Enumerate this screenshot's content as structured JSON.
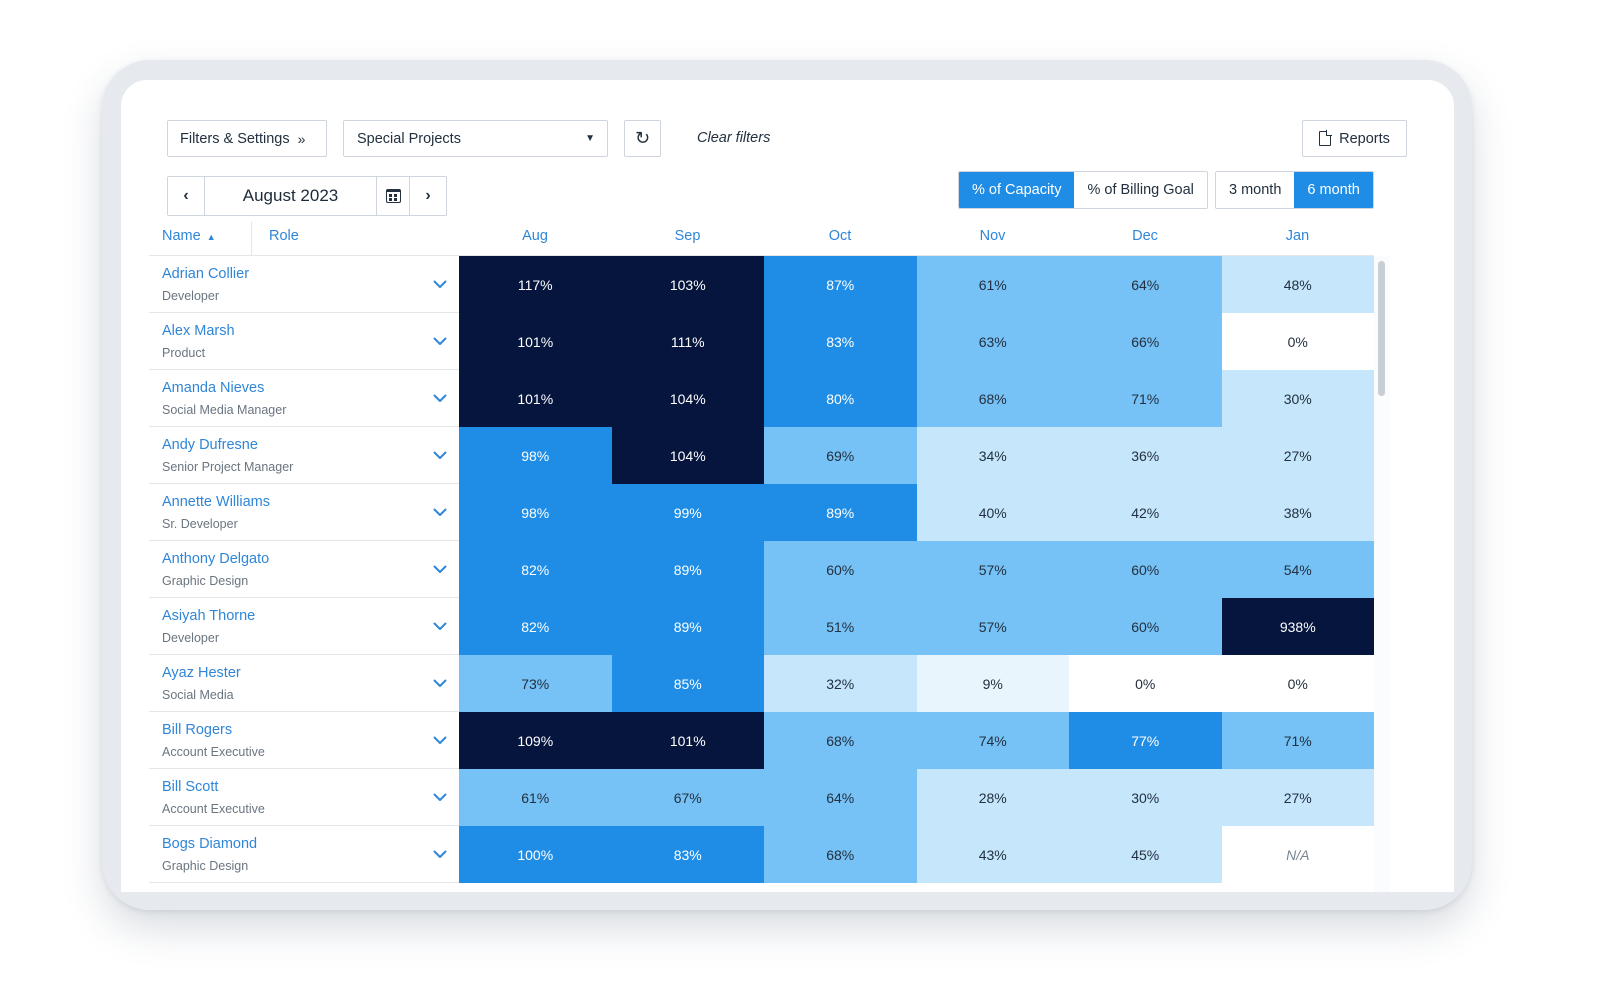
{
  "toolbar": {
    "filters_label": "Filters & Settings",
    "filters_chevron": "»",
    "project_value": "Special Projects",
    "clear_filters": "Clear filters",
    "reports_label": "Reports"
  },
  "date_nav": {
    "month": "August 2023",
    "prev": "‹",
    "next": "›"
  },
  "metric_toggle": [
    {
      "label": "% of Capacity",
      "active": true
    },
    {
      "label": "% of Billing Goal",
      "active": false
    }
  ],
  "range_toggle": [
    {
      "label": "3 month",
      "active": false
    },
    {
      "label": "6 month",
      "active": true
    }
  ],
  "table": {
    "name_header": "Name",
    "sort_indicator": "▲",
    "role_header": "Role",
    "months": [
      "Aug",
      "Sep",
      "Oct",
      "Nov",
      "Dec",
      "Jan"
    ],
    "rows": [
      {
        "name": "Adrian Collier",
        "role": "Developer",
        "values": [
          "117%",
          "103%",
          "87%",
          "61%",
          "64%",
          "48%"
        ]
      },
      {
        "name": "Alex Marsh",
        "role": "Product",
        "values": [
          "101%",
          "111%",
          "83%",
          "63%",
          "66%",
          "0%"
        ]
      },
      {
        "name": "Amanda Nieves",
        "role": "Social Media Manager",
        "values": [
          "101%",
          "104%",
          "80%",
          "68%",
          "71%",
          "30%"
        ]
      },
      {
        "name": "Andy Dufresne",
        "role": "Senior Project Manager",
        "values": [
          "98%",
          "104%",
          "69%",
          "34%",
          "36%",
          "27%"
        ]
      },
      {
        "name": "Annette Williams",
        "role": "Sr. Developer",
        "values": [
          "98%",
          "99%",
          "89%",
          "40%",
          "42%",
          "38%"
        ]
      },
      {
        "name": "Anthony Delgato",
        "role": "Graphic Design",
        "values": [
          "82%",
          "89%",
          "60%",
          "57%",
          "60%",
          "54%"
        ]
      },
      {
        "name": "Asiyah Thorne",
        "role": "Developer",
        "values": [
          "82%",
          "89%",
          "51%",
          "57%",
          "60%",
          "938%"
        ]
      },
      {
        "name": "Ayaz Hester",
        "role": "Social Media",
        "values": [
          "73%",
          "85%",
          "32%",
          "9%",
          "0%",
          "0%"
        ]
      },
      {
        "name": "Bill Rogers",
        "role": "Account Executive",
        "values": [
          "109%",
          "101%",
          "68%",
          "74%",
          "77%",
          "71%"
        ]
      },
      {
        "name": "Bill Scott",
        "role": "Account Executive",
        "values": [
          "61%",
          "67%",
          "64%",
          "28%",
          "30%",
          "27%"
        ]
      },
      {
        "name": "Bogs Diamond",
        "role": "Graphic Design",
        "values": [
          "100%",
          "83%",
          "68%",
          "43%",
          "45%",
          "N/A"
        ]
      }
    ],
    "cell_colors": [
      [
        "#06153d",
        "#06153d",
        "#1f8de6",
        "#76c1f5",
        "#76c1f5",
        "#c5e6fb"
      ],
      [
        "#06153d",
        "#06153d",
        "#1f8de6",
        "#76c1f5",
        "#76c1f5",
        "#ffffff"
      ],
      [
        "#06153d",
        "#06153d",
        "#1f8de6",
        "#76c1f5",
        "#76c1f5",
        "#c5e6fb"
      ],
      [
        "#1f8de6",
        "#06153d",
        "#76c1f5",
        "#c5e6fb",
        "#c5e6fb",
        "#c5e6fb"
      ],
      [
        "#1f8de6",
        "#1f8de6",
        "#1f8de6",
        "#c5e6fb",
        "#c5e6fb",
        "#c5e6fb"
      ],
      [
        "#1f8de6",
        "#1f8de6",
        "#76c1f5",
        "#76c1f5",
        "#76c1f5",
        "#76c1f5"
      ],
      [
        "#1f8de6",
        "#1f8de6",
        "#76c1f5",
        "#76c1f5",
        "#76c1f5",
        "#06153d"
      ],
      [
        "#76c1f5",
        "#1f8de6",
        "#c5e6fb",
        "#e8f5fd",
        "#ffffff",
        "#ffffff"
      ],
      [
        "#06153d",
        "#06153d",
        "#76c1f5",
        "#76c1f5",
        "#1f8de6",
        "#76c1f5"
      ],
      [
        "#76c1f5",
        "#76c1f5",
        "#76c1f5",
        "#c5e6fb",
        "#c5e6fb",
        "#c5e6fb"
      ],
      [
        "#1f8de6",
        "#1f8de6",
        "#76c1f5",
        "#c5e6fb",
        "#c5e6fb",
        "#ffffff"
      ]
    ]
  },
  "colors": {
    "accent": "#1f8de6",
    "link": "#2f86d8",
    "level_over": "#06153d",
    "level_high": "#1f8de6",
    "level_mid": "#76c1f5",
    "level_low": "#c5e6fb",
    "level_min": "#e8f5fd",
    "level_none": "#ffffff"
  },
  "icons": [
    "chevron-left-icon",
    "chevron-right-icon",
    "calendar-icon",
    "refresh-icon",
    "caret-down-icon",
    "document-icon",
    "chevron-down-icon",
    "sort-up-icon"
  ]
}
